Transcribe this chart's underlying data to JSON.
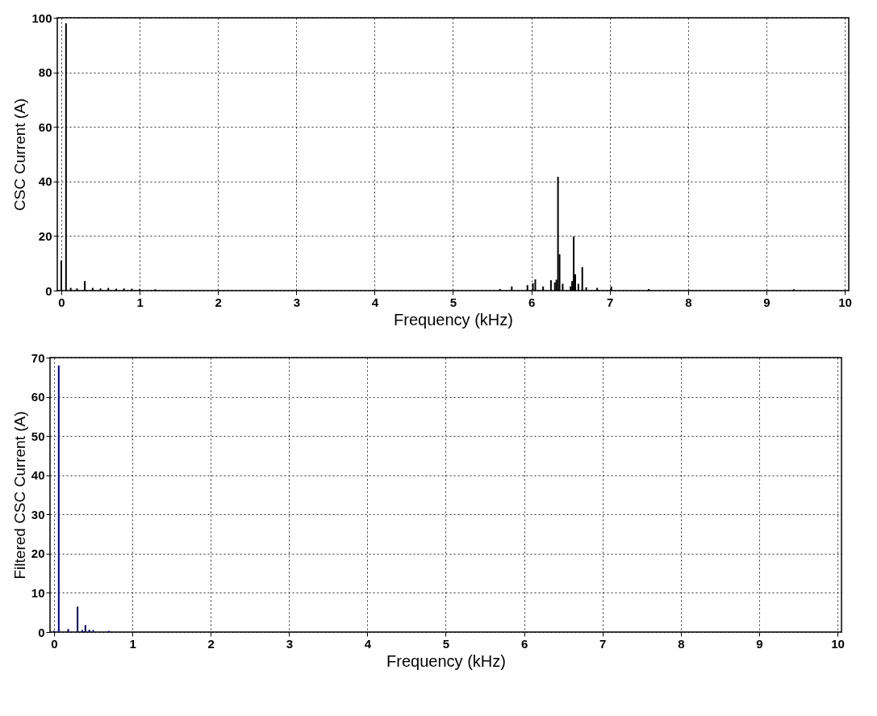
{
  "chart_data": [
    {
      "type": "bar",
      "xlabel": "Frequency (kHz)",
      "ylabel": "CSC Current (A)",
      "color": "#000000",
      "grid": true,
      "x": [
        0.0,
        0.06,
        0.12,
        0.2,
        0.3,
        0.4,
        0.5,
        0.6,
        0.7,
        0.8,
        0.9,
        1.0,
        1.2,
        5.6,
        5.75,
        5.95,
        6.02,
        6.05,
        6.15,
        6.25,
        6.3,
        6.32,
        6.34,
        6.36,
        6.4,
        6.5,
        6.52,
        6.54,
        6.56,
        6.6,
        6.65,
        6.7,
        6.84,
        7.02,
        7.5,
        9.35
      ],
      "values": [
        11,
        98,
        1,
        0.8,
        3.5,
        1,
        0.8,
        1,
        0.7,
        0.8,
        0.7,
        0.6,
        0.5,
        0.6,
        1.5,
        2,
        2.7,
        4.1,
        1.5,
        3.8,
        3,
        4,
        41.7,
        13.3,
        2.5,
        1.5,
        3.5,
        19.8,
        6,
        2.5,
        8.6,
        1.2,
        1,
        1.5,
        0.6,
        0.5
      ],
      "xlim": [
        0,
        10
      ],
      "xticks": [
        0,
        1,
        2,
        3,
        4,
        5,
        6,
        7,
        8,
        9,
        10
      ],
      "ylim": [
        0,
        100
      ],
      "yticks": [
        0,
        20,
        40,
        60,
        80,
        100
      ]
    },
    {
      "type": "bar",
      "xlabel": "Frequency (kHz)",
      "ylabel": "Filtered CSC Current (A)",
      "color": "#000080",
      "grid": true,
      "x": [
        0.0,
        0.06,
        0.18,
        0.3,
        0.36,
        0.4,
        0.45,
        0.5,
        0.7
      ],
      "values": [
        0.3,
        68,
        0.8,
        6.5,
        0.5,
        1.8,
        0.6,
        0.5,
        0.3
      ],
      "xlim": [
        0,
        10
      ],
      "xticks": [
        0,
        1,
        2,
        3,
        4,
        5,
        6,
        7,
        8,
        9,
        10
      ],
      "ylim": [
        0,
        70
      ],
      "yticks": [
        0,
        10,
        20,
        30,
        40,
        50,
        60,
        70
      ]
    }
  ]
}
